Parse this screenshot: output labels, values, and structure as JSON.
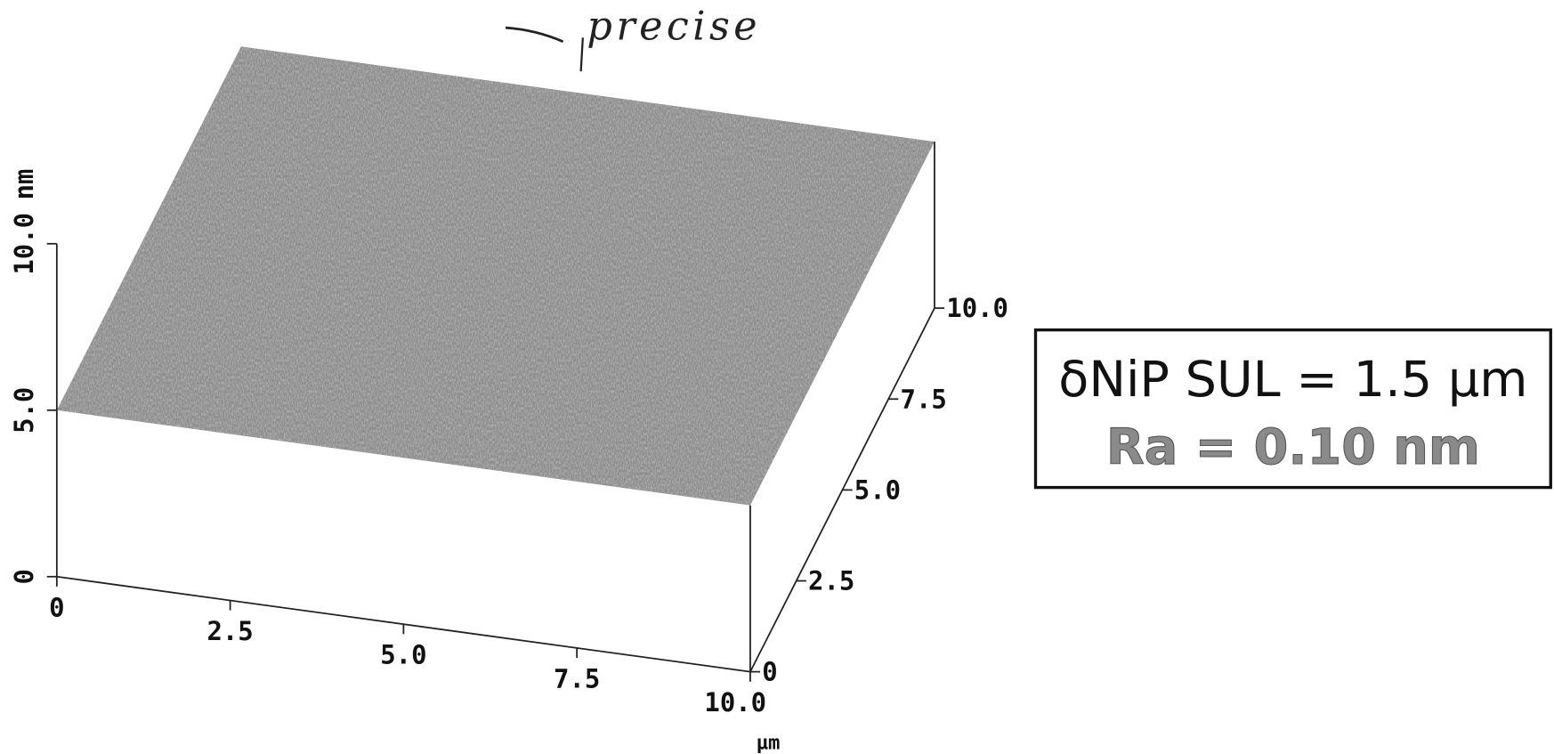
{
  "chart_data": {
    "type": "surface3d",
    "annotation": "precise",
    "xlabel": "µm",
    "zlabel": "nm",
    "xlim": [
      0,
      10
    ],
    "ylim": [
      0,
      10
    ],
    "zlim": [
      0,
      10
    ],
    "xticks": [
      0,
      2.5,
      {
        "value": 5,
        "label": "5.0"
      },
      7.5,
      {
        "value": 10,
        "label": "10.0"
      }
    ],
    "yticks": [
      0,
      2.5,
      {
        "value": 5,
        "label": "5.0"
      },
      7.5,
      {
        "value": 10,
        "label": "10.0"
      }
    ],
    "zticks": [
      0,
      {
        "value": 5,
        "label": "5.0"
      },
      {
        "value": 10,
        "label": "10.0"
      }
    ],
    "surface_level": 5,
    "surface_color": "#8c8c8c",
    "info_box": [
      "δNiP SUL = 1.5 µm",
      "Ra = 0.10 nm"
    ]
  }
}
